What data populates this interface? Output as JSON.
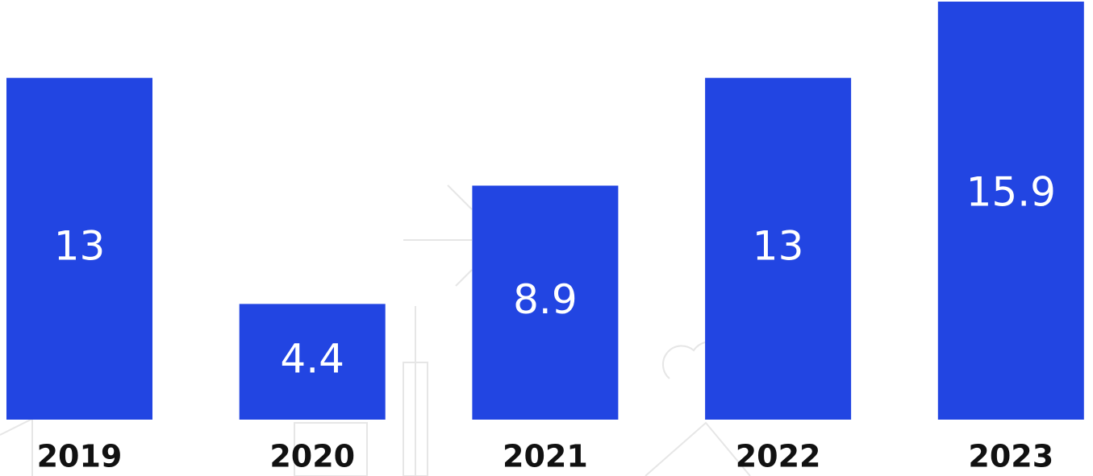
{
  "chart_data": {
    "type": "bar",
    "categories": [
      "2019",
      "2020",
      "2021",
      "2022",
      "2023"
    ],
    "values": [
      13,
      4.4,
      8.9,
      13,
      15.9
    ],
    "color": "#2245e2"
  }
}
